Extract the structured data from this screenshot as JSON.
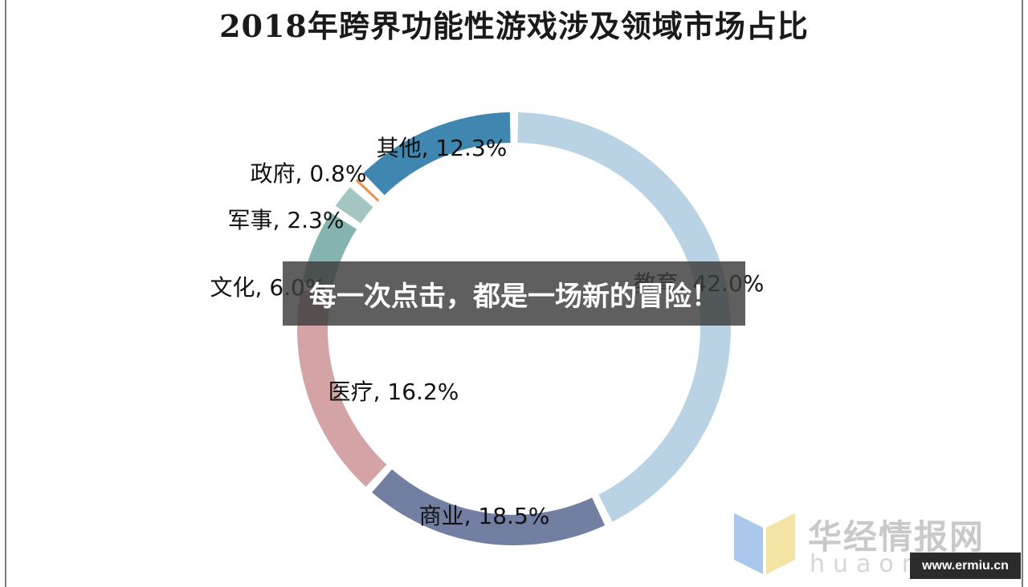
{
  "chart_data": {
    "type": "pie",
    "title": "2018年跨界功能性游戏涉及领域市场占比",
    "slices": [
      {
        "label": "教育",
        "value": 42.0,
        "text": "教育, 42.0%",
        "color": "#b9d3e4"
      },
      {
        "label": "商业",
        "value": 18.5,
        "text": "商业, 18.5%",
        "color": "#737ea3"
      },
      {
        "label": "医疗",
        "value": 16.2,
        "text": "医疗, 16.2%",
        "color": "#d4a3a5"
      },
      {
        "label": "文化",
        "value": 6.0,
        "text": "文化, 6.0%",
        "color": "#85b4b0"
      },
      {
        "label": "军事",
        "value": 2.3,
        "text": "军事, 2.3%",
        "color": "#a5c5c0"
      },
      {
        "label": "政府",
        "value": 0.8,
        "text": "政府, 0.8%",
        "color": "#e8975a"
      },
      {
        "label": "其他",
        "value": 12.3,
        "text": "其他, 12.3%",
        "color": "#3f86b0"
      }
    ]
  },
  "overlay": {
    "text": "每一次点击，都是一场新的冒险！"
  },
  "watermark": {
    "name": "华经情报网",
    "sub": "huaon.com"
  },
  "badge": {
    "url": "www.ermiu.cn"
  }
}
